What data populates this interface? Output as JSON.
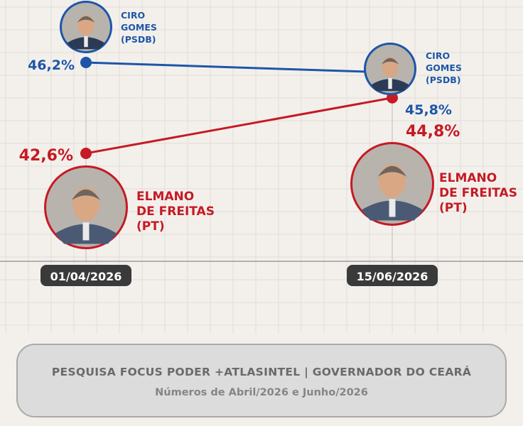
{
  "chart_data": {
    "type": "line",
    "x": [
      "01/04/2026",
      "15/06/2026"
    ],
    "series": [
      {
        "name": "CIRO GOMES (PSDB)",
        "name_lines": [
          "CIRO",
          "GOMES",
          "(PSDB)"
        ],
        "color": "#1d56a8",
        "values": [
          46.2,
          45.8
        ],
        "labels": [
          "46,2%",
          "45,8%"
        ]
      },
      {
        "name": "ELMANO DE FREITAS (PT)",
        "name_lines": [
          "ELMANO",
          "DE FREITAS",
          "(PT)"
        ],
        "color": "#c61a24",
        "values": [
          42.6,
          44.8
        ],
        "labels": [
          "42,6%",
          "44,8%"
        ]
      }
    ],
    "title": "",
    "xlabel": "",
    "ylabel": "",
    "grid": true
  },
  "footer": {
    "title": "PESQUISA FOCUS PODER +ATLASINTEL  |  GOVERNADOR DO CEARÁ",
    "subtitle": "Números de Abril/2026 e Junho/2026"
  },
  "colors": {
    "background": "#f3f0ec",
    "grid": "#e1ddd8",
    "date_pill": "#3a3a3a"
  }
}
